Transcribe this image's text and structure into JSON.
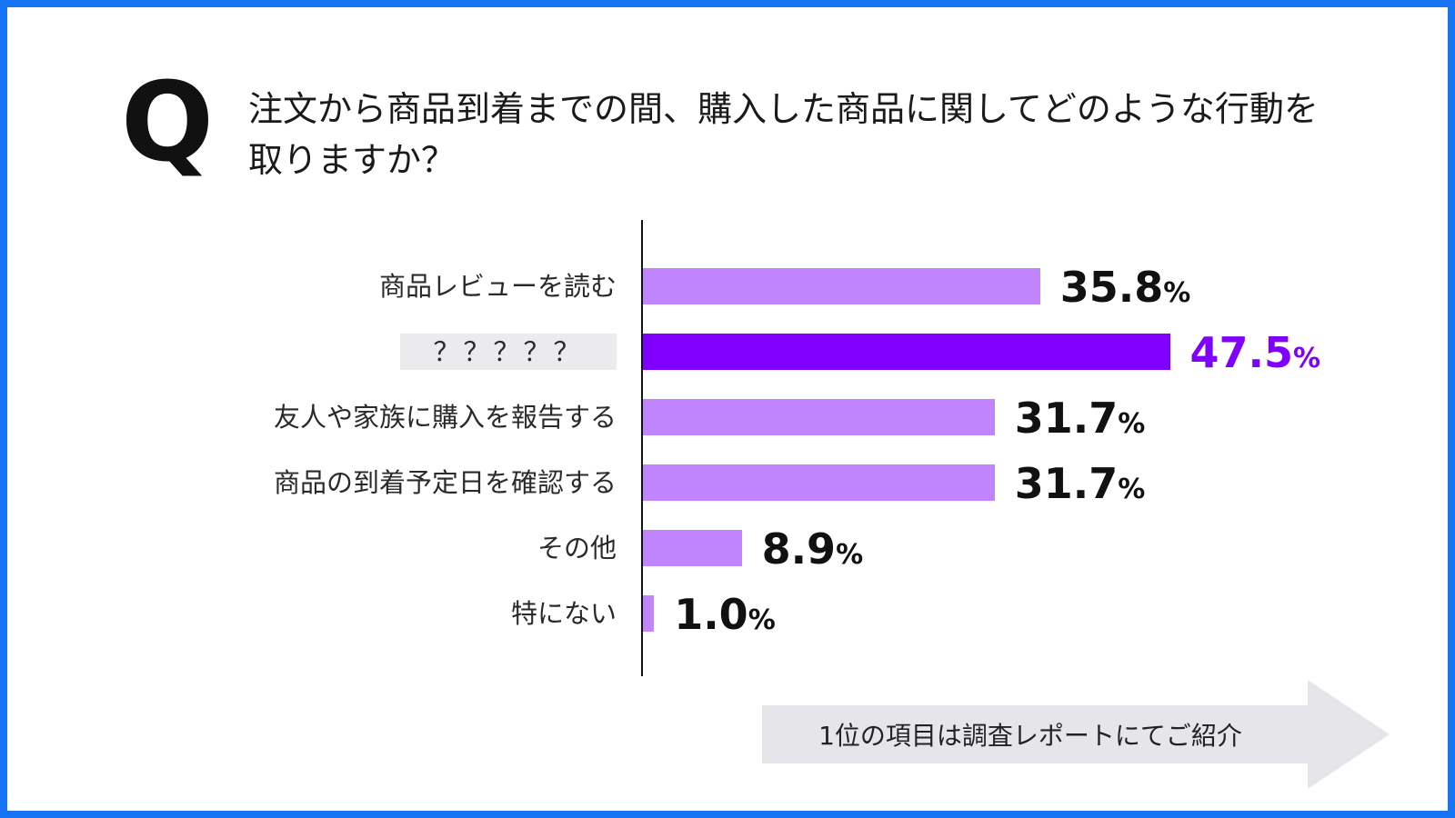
{
  "question": {
    "mark": "Q",
    "text": "注文から商品到着までの間、購入した商品に関してどのような行動を取りますか？"
  },
  "chart_data": {
    "type": "bar",
    "orientation": "horizontal",
    "categories": [
      "商品レビューを読む",
      "？？？？？",
      "友人や家族に購入を報告する",
      "商品の到着予定日を確認する",
      "その他",
      "特にない"
    ],
    "values": [
      35.8,
      47.5,
      31.7,
      31.7,
      8.9,
      1.0
    ],
    "value_labels": [
      "35.8",
      "47.5",
      "31.7",
      "31.7",
      "8.9",
      "1.0"
    ],
    "unit": "%",
    "highlight_index": 1,
    "xlim": [
      0,
      50
    ],
    "grid": false,
    "colors": {
      "bar": "#c084fc",
      "highlight_bar": "#7f00ff",
      "value_text": "#111111",
      "highlight_text": "#7f00ff"
    }
  },
  "callout": {
    "text": "1位の項目は調査レポートにてご紹介"
  }
}
